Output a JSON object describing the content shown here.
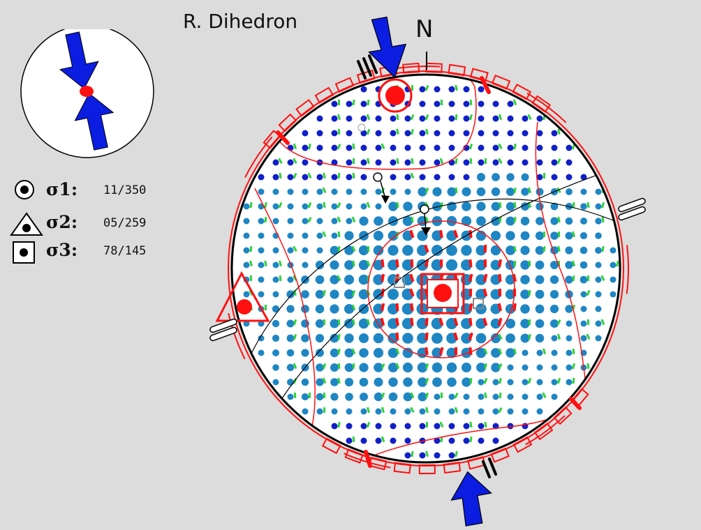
{
  "title": "R. Dihedron",
  "north_label": "N",
  "stress_axes": [
    {
      "symbol": "circle-marker-icon",
      "label": "σ1:",
      "value": "11/350"
    },
    {
      "symbol": "triangle-marker-icon",
      "label": "σ2:",
      "value": "05/259"
    },
    {
      "symbol": "square-marker-icon",
      "label": "σ3:",
      "value": "78/145"
    }
  ],
  "colors": {
    "background": "#dcdcdc",
    "compression_blue": "#1f86c4",
    "red": "#ff1111",
    "arrow_blue": "#0b1de0",
    "dark_blue": "#1020c8",
    "green": "#2ed13a"
  }
}
